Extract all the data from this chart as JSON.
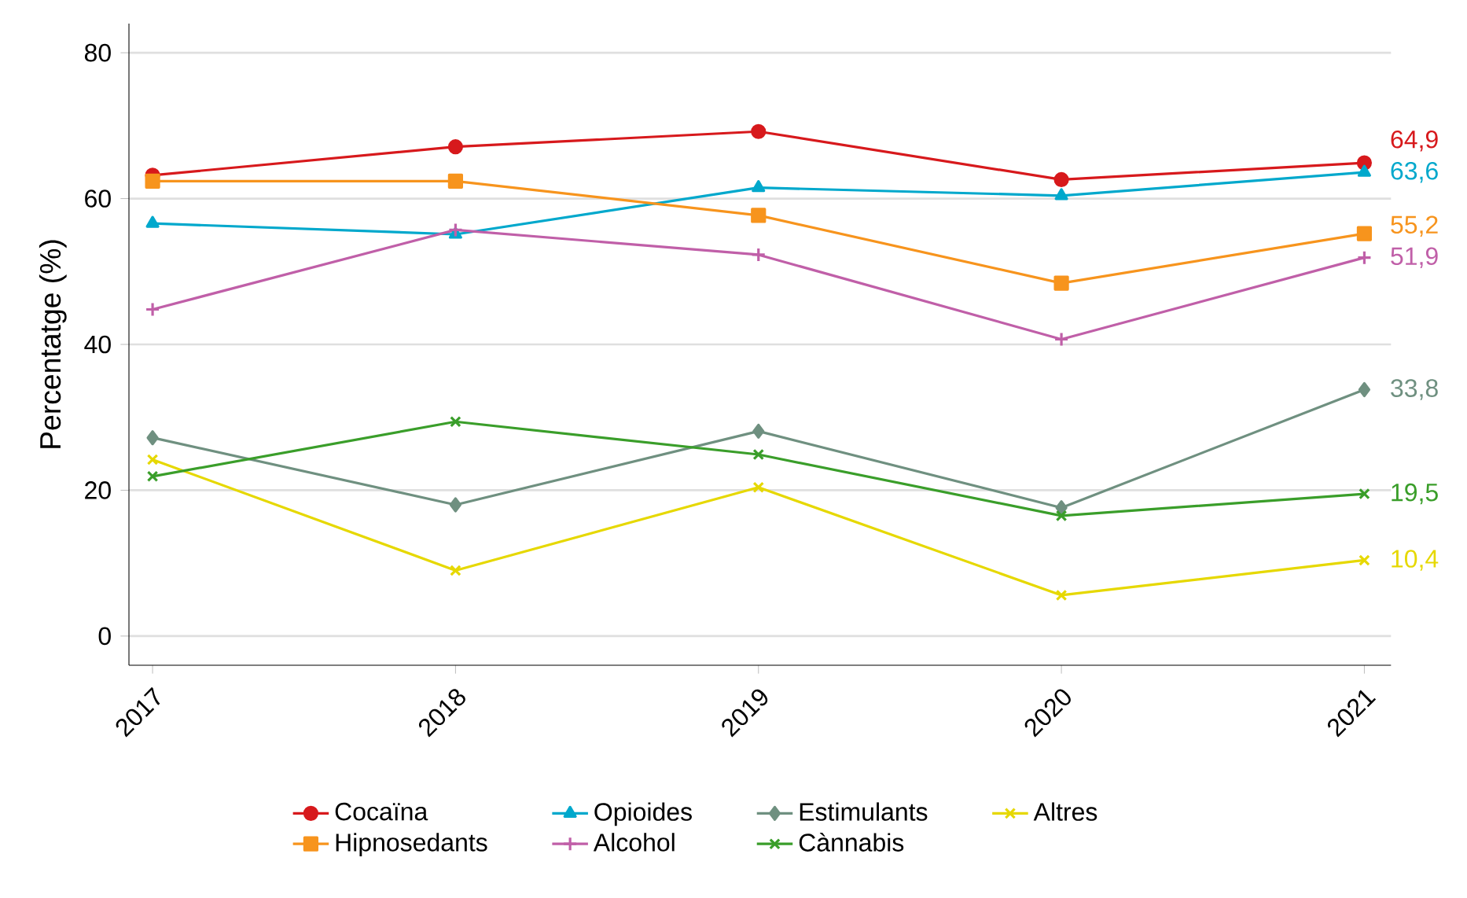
{
  "chart_data": {
    "type": "line",
    "ylabel": "Percentatge (%)",
    "categories": [
      "2017",
      "2018",
      "2019",
      "2020",
      "2021"
    ],
    "ylim": [
      -4,
      84
    ],
    "yticks": [
      0,
      20,
      40,
      60,
      80
    ],
    "grid": "y",
    "legend": "bottom",
    "line_style": "solid",
    "series": [
      {
        "name": "Cocaïna",
        "color": "#d7191c",
        "marker": "circle",
        "values": [
          63.2,
          67.1,
          69.2,
          62.6,
          64.9
        ],
        "value_labels": [
          null,
          null,
          null,
          null,
          "64,9"
        ]
      },
      {
        "name": "Opioides",
        "color": "#00a8cc",
        "marker": "triangle",
        "values": [
          56.6,
          55.1,
          61.5,
          60.4,
          63.6
        ],
        "value_labels": [
          null,
          null,
          null,
          null,
          "63,6"
        ]
      },
      {
        "name": "Estimulants",
        "color": "#6f9080",
        "marker": "diamond",
        "values": [
          27.2,
          18.0,
          28.1,
          17.6,
          33.8
        ],
        "value_labels": [
          null,
          null,
          null,
          null,
          "33,8"
        ]
      },
      {
        "name": "Altres",
        "color": "#e6d800",
        "marker": "cross",
        "values": [
          24.2,
          9.0,
          20.4,
          5.6,
          10.4
        ],
        "value_labels": [
          null,
          null,
          null,
          null,
          "10,4"
        ]
      },
      {
        "name": "Hipnosedants",
        "color": "#f7941d",
        "marker": "square",
        "values": [
          62.4,
          62.4,
          57.7,
          48.4,
          55.2
        ],
        "value_labels": [
          null,
          null,
          null,
          null,
          "55,2"
        ]
      },
      {
        "name": "Alcohol",
        "color": "#c05fa8",
        "marker": "plus",
        "values": [
          44.8,
          55.7,
          52.3,
          40.7,
          51.9
        ],
        "value_labels": [
          null,
          null,
          null,
          null,
          "51,9"
        ]
      },
      {
        "name": "Cànnabis",
        "color": "#3a9e2a",
        "marker": "cross",
        "values": [
          21.9,
          29.4,
          24.9,
          16.5,
          19.5
        ],
        "value_labels": [
          null,
          null,
          null,
          null,
          "19,5"
        ]
      }
    ]
  }
}
